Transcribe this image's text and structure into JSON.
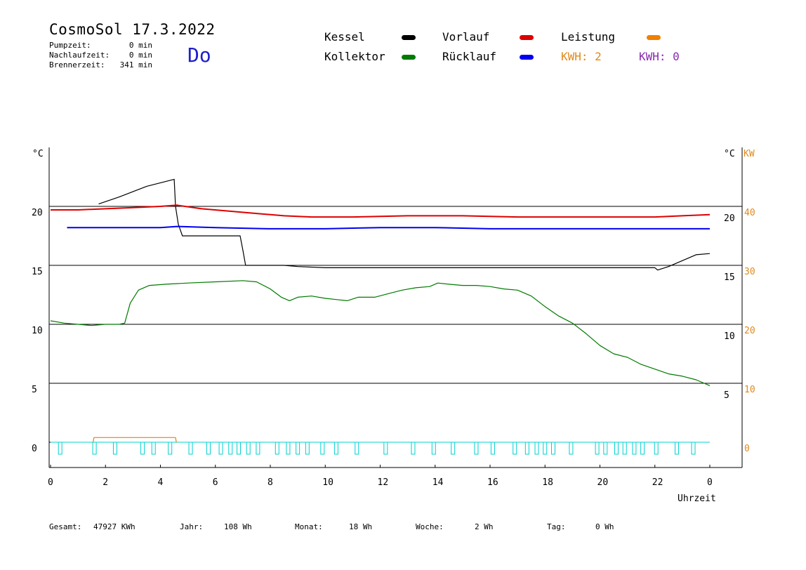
{
  "header": {
    "title": "CosmoSol 17.3.2022",
    "weekday": "Do",
    "pump_label": "Pumpzeit:",
    "pump_value": "0 min",
    "afterrun_label": "Nachlaufzeit:",
    "afterrun_value": "0 min",
    "burner_label": "Brennerzeit:",
    "burner_value": "341 min"
  },
  "legend": {
    "kessel": "Kessel",
    "vorlauf": "Vorlauf",
    "leistung": "Leistung",
    "kollektor": "Kollektor",
    "ruecklauf": "Rücklauf",
    "kwh1": "KWH: 2",
    "kwh2": "KWH: 0"
  },
  "colors": {
    "kessel": "#000000",
    "vorlauf": "#dd0000",
    "leistung": "#f08000",
    "kollektor": "#007a00",
    "ruecklauf": "#0000ee",
    "pump": "#00d0d0",
    "kwh1": "#e08a1c",
    "kwh2": "#8a2ab0",
    "weekday": "#1e1ecc"
  },
  "footer": {
    "total_label": "Gesamt:",
    "total_value": "47927 KWh",
    "year_label": "Jahr:",
    "year_value": "108 Wh",
    "month_label": "Monat:",
    "month_value": "18 Wh",
    "week_label": "Woche:",
    "week_value": "2 Wh",
    "day_label": "Tag:",
    "day_value": "0 Wh"
  },
  "chart_data": {
    "type": "line",
    "x_unit_label": "Uhrzeit",
    "left_axis_unit": "°C",
    "right_axis_unit_temp": "°C",
    "right_axis_unit_power": "KW",
    "x_ticks": [
      "0",
      "2",
      "4",
      "6",
      "8",
      "10",
      "12",
      "14",
      "16",
      "18",
      "20",
      "22",
      "0"
    ],
    "xlim": [
      0,
      24
    ],
    "ylim": [
      -1.5,
      25
    ],
    "y_left_ticks": [
      0,
      5,
      10,
      15,
      20
    ],
    "y_right_temp_ticks": [
      {
        "label": "5",
        "value": 5
      },
      {
        "label": "10",
        "value": 10
      },
      {
        "label": "15",
        "value": 15
      },
      {
        "label": "20",
        "value": 20
      }
    ],
    "y_right_power_ticks": [
      {
        "label": "0",
        "value": 0
      },
      {
        "label": "10",
        "value": 5
      },
      {
        "label": "20",
        "value": 10
      },
      {
        "label": "30",
        "value": 15
      },
      {
        "label": "40",
        "value": 20
      }
    ],
    "gridlines": [
      5,
      10,
      15,
      20,
      0
    ],
    "series": [
      {
        "name": "Kessel",
        "key": "kessel",
        "x": [
          1.75,
          2.5,
          3.5,
          4.5,
          4.55,
          4.65,
          4.8,
          5.5,
          6.5,
          6.9,
          7.0,
          7.1,
          8.5,
          9.0,
          10.0,
          15.0,
          20.0,
          22.0,
          22.1,
          22.5,
          23.0,
          23.5,
          24.0
        ],
        "y": [
          20.2,
          20.8,
          21.7,
          22.3,
          20.0,
          18.5,
          17.5,
          17.5,
          17.5,
          17.5,
          16.3,
          15.0,
          15.0,
          14.9,
          14.8,
          14.8,
          14.8,
          14.8,
          14.6,
          14.9,
          15.4,
          15.9,
          16.0
        ]
      },
      {
        "name": "Vorlauf",
        "key": "vorlauf",
        "x": [
          0,
          1,
          2,
          3,
          4,
          4.6,
          5.5,
          6.5,
          7.5,
          8.5,
          9.5,
          11,
          13,
          14,
          15,
          17,
          18,
          20,
          22,
          23,
          24
        ],
        "y": [
          19.7,
          19.7,
          19.8,
          19.9,
          20.0,
          20.1,
          19.8,
          19.6,
          19.4,
          19.2,
          19.1,
          19.1,
          19.2,
          19.2,
          19.2,
          19.1,
          19.1,
          19.1,
          19.1,
          19.2,
          19.3
        ]
      },
      {
        "name": "Rücklauf",
        "key": "ruecklauf",
        "x": [
          0.6,
          2,
          4,
          4.6,
          6,
          8,
          10,
          12,
          14,
          16,
          18,
          20,
          22,
          24
        ],
        "y": [
          18.2,
          18.2,
          18.2,
          18.3,
          18.2,
          18.1,
          18.1,
          18.2,
          18.2,
          18.1,
          18.1,
          18.1,
          18.1,
          18.1
        ]
      },
      {
        "name": "Kollektor",
        "key": "kollektor",
        "x": [
          0,
          0.5,
          1,
          1.5,
          2,
          2.5,
          2.7,
          2.9,
          3.2,
          3.6,
          4.2,
          5,
          6,
          7,
          7.5,
          8,
          8.4,
          8.7,
          9,
          9.5,
          10,
          10.4,
          10.8,
          11.2,
          11.8,
          12.3,
          12.8,
          13.3,
          13.8,
          14.1,
          14.5,
          15,
          15.5,
          16,
          16.5,
          17,
          17.5,
          18,
          18.5,
          19,
          19.5,
          20,
          20.5,
          21,
          21.5,
          22,
          22.5,
          23,
          23.5,
          24
        ],
        "y": [
          10.3,
          10.1,
          10.0,
          9.9,
          10.0,
          10.0,
          10.1,
          11.8,
          12.9,
          13.3,
          13.4,
          13.5,
          13.6,
          13.7,
          13.6,
          13.0,
          12.3,
          12.0,
          12.3,
          12.4,
          12.2,
          12.1,
          12.0,
          12.3,
          12.3,
          12.6,
          12.9,
          13.1,
          13.2,
          13.5,
          13.4,
          13.3,
          13.3,
          13.2,
          13.0,
          12.9,
          12.4,
          11.5,
          10.7,
          10.1,
          9.2,
          8.2,
          7.5,
          7.2,
          6.6,
          6.2,
          5.8,
          5.6,
          5.3,
          4.8
        ]
      },
      {
        "name": "Leistung",
        "key": "leistung",
        "x": [
          1.55,
          1.58,
          4.55,
          4.58
        ],
        "y": [
          0,
          0.4,
          0.4,
          0
        ]
      }
    ],
    "pump_pulses": [
      0.35,
      1.6,
      2.35,
      3.35,
      3.75,
      4.35,
      5.1,
      5.75,
      6.2,
      6.55,
      6.85,
      7.2,
      7.55,
      8.25,
      8.65,
      9.0,
      9.35,
      9.9,
      10.4,
      11.15,
      12.2,
      13.2,
      13.95,
      14.65,
      15.5,
      16.1,
      16.9,
      17.35,
      17.7,
      18.0,
      18.3,
      18.95,
      19.9,
      20.2,
      20.6,
      20.9,
      21.25,
      21.55,
      22.05,
      22.8,
      23.4
    ]
  }
}
